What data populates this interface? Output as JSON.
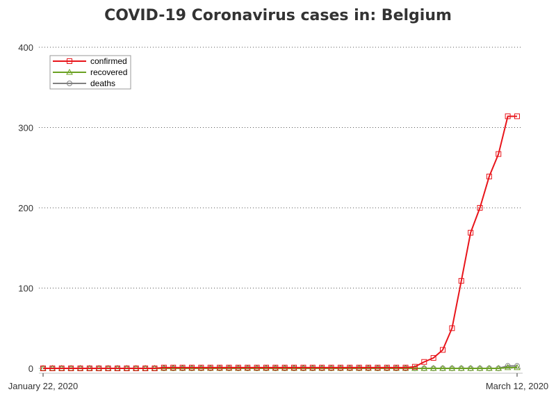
{
  "chart_data": {
    "type": "line",
    "title": "COVID-19 Coronavirus cases in: Belgium",
    "xlabel": "",
    "ylabel": "",
    "x_tick_labels": [
      "January 22, 2020",
      "March 12, 2020"
    ],
    "x_start": "2020-01-22",
    "x_end": "2020-03-12",
    "ylim": [
      0,
      400
    ],
    "yticks": [
      0,
      100,
      200,
      300,
      400
    ],
    "grid": "horizontal-dotted",
    "legend_position": "top-left",
    "series": [
      {
        "name": "confirmed",
        "color": "#e8141a",
        "marker": "square",
        "values": [
          0,
          0,
          0,
          0,
          0,
          0,
          0,
          0,
          0,
          0,
          0,
          0,
          0,
          1,
          1,
          1,
          1,
          1,
          1,
          1,
          1,
          1,
          1,
          1,
          1,
          1,
          1,
          1,
          1,
          1,
          1,
          1,
          1,
          1,
          1,
          1,
          1,
          1,
          1,
          1,
          2,
          8,
          13,
          23,
          50,
          109,
          169,
          200,
          239,
          267,
          314,
          314
        ]
      },
      {
        "name": "recovered",
        "color": "#6aa121",
        "marker": "triangle",
        "values": [
          0,
          0,
          0,
          0,
          0,
          0,
          0,
          0,
          0,
          0,
          0,
          0,
          0,
          0,
          0,
          0,
          0,
          0,
          0,
          0,
          0,
          0,
          0,
          0,
          0,
          0,
          0,
          0,
          0,
          0,
          0,
          0,
          0,
          0,
          0,
          0,
          0,
          0,
          0,
          0,
          0,
          0,
          0,
          0,
          0,
          0,
          0,
          0,
          0,
          0,
          1,
          1
        ]
      },
      {
        "name": "deaths",
        "color": "#808080",
        "marker": "circle",
        "values": [
          0,
          0,
          0,
          0,
          0,
          0,
          0,
          0,
          0,
          0,
          0,
          0,
          0,
          0,
          0,
          0,
          0,
          0,
          0,
          0,
          0,
          0,
          0,
          0,
          0,
          0,
          0,
          0,
          0,
          0,
          0,
          0,
          0,
          0,
          0,
          0,
          0,
          0,
          0,
          0,
          0,
          0,
          0,
          0,
          0,
          0,
          0,
          0,
          0,
          0,
          3,
          3
        ]
      }
    ]
  }
}
